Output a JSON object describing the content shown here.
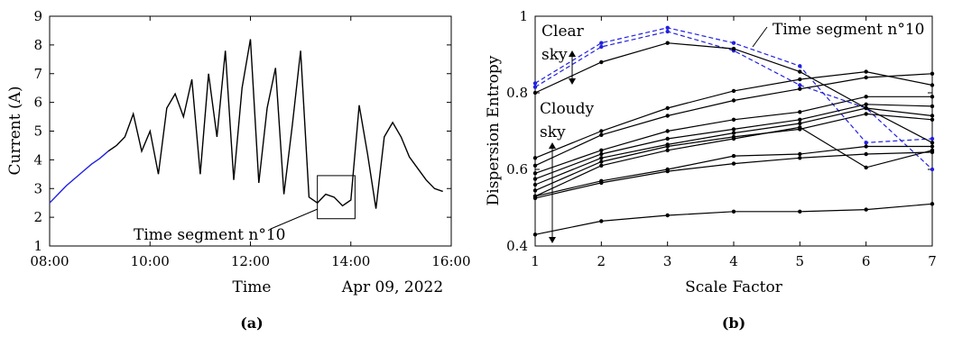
{
  "chart_data": [
    {
      "panel": "(a)",
      "type": "line",
      "xlabel": "Time",
      "xlabel_extra": "Apr 09, 2022",
      "ylabel": "Current (A)",
      "xlim": [
        "08:00",
        "16:00"
      ],
      "xticks": [
        "08:00",
        "10:00",
        "12:00",
        "14:00",
        "16:00"
      ],
      "ylim": [
        1,
        9
      ],
      "yticks": [
        "1",
        "2",
        "3",
        "4",
        "5",
        "6",
        "7",
        "8",
        "9"
      ],
      "grid": false,
      "colors": {
        "main": "#000000",
        "highlight": "#2020e0"
      },
      "annotation": "Time segment n°10",
      "segment_box": {
        "x_start": "13:20",
        "x_end": "14:05",
        "y_min": 1.95,
        "y_max": 3.45
      },
      "series": [
        {
          "color": "#2020e0",
          "x": [
            "08:00",
            "08:10",
            "08:20",
            "08:30",
            "08:40",
            "08:50",
            "09:00",
            "09:10"
          ],
          "values": [
            2.5,
            2.8,
            3.1,
            3.35,
            3.6,
            3.85,
            4.05,
            4.3
          ]
        },
        {
          "color": "#000000",
          "x": [
            "09:10",
            "09:20",
            "09:30",
            "09:40",
            "09:50",
            "10:00",
            "10:10",
            "10:20",
            "10:30",
            "10:40",
            "10:50",
            "11:00",
            "11:10",
            "11:20",
            "11:30",
            "11:40",
            "11:50",
            "12:00",
            "12:10",
            "12:20",
            "12:30",
            "12:40",
            "12:50",
            "13:00",
            "13:10",
            "13:20",
            "13:30",
            "13:40",
            "13:50",
            "14:00",
            "14:10",
            "14:20",
            "14:30",
            "14:40",
            "14:50",
            "15:00",
            "15:10",
            "15:20",
            "15:30",
            "15:40",
            "15:50"
          ],
          "values": [
            4.3,
            4.5,
            4.8,
            5.6,
            4.3,
            5.0,
            3.5,
            5.8,
            6.3,
            5.5,
            6.8,
            3.5,
            7.0,
            4.8,
            7.8,
            3.3,
            6.5,
            8.2,
            3.2,
            5.8,
            7.2,
            2.8,
            5.2,
            7.8,
            2.7,
            2.5,
            2.8,
            2.7,
            2.4,
            2.6,
            5.9,
            4.2,
            2.3,
            4.8,
            5.3,
            4.8,
            4.1,
            3.7,
            3.3,
            3.0,
            2.9
          ]
        }
      ]
    },
    {
      "panel": "(b)",
      "type": "line",
      "xlabel": "Scale Factor",
      "ylabel": "Dispersion Entropy",
      "x": [
        1,
        2,
        3,
        4,
        5,
        6,
        7
      ],
      "xticks": [
        "1",
        "2",
        "3",
        "4",
        "5",
        "6",
        "7"
      ],
      "xlim": [
        1,
        7
      ],
      "ylim": [
        0.4,
        1.0
      ],
      "yticks": [
        "0.4",
        "0.6",
        "0.8",
        "1"
      ],
      "grid": false,
      "annotations": {
        "clear_sky_line1": "Clear",
        "clear_sky_line2": "sky",
        "cloudy_sky_line1": "Cloudy",
        "cloudy_sky_line2": "sky",
        "segment": "Time segment n°10"
      },
      "series": [
        {
          "color": "#2020e0",
          "dashed": true,
          "values": [
            0.825,
            0.93,
            0.97,
            0.93,
            0.87,
            0.67,
            0.68
          ]
        },
        {
          "color": "#2020e0",
          "dashed": true,
          "values": [
            0.815,
            0.92,
            0.96,
            0.91,
            0.82,
            0.76,
            0.6
          ]
        },
        {
          "color": "#000000",
          "dashed": false,
          "values": [
            0.8,
            0.88,
            0.93,
            0.915,
            0.855,
            0.76,
            0.67
          ]
        },
        {
          "color": "#000000",
          "dashed": false,
          "values": [
            0.63,
            0.7,
            0.76,
            0.805,
            0.835,
            0.855,
            0.82
          ]
        },
        {
          "color": "#000000",
          "dashed": false,
          "values": [
            0.61,
            0.69,
            0.74,
            0.78,
            0.81,
            0.84,
            0.85
          ]
        },
        {
          "color": "#000000",
          "dashed": false,
          "values": [
            0.59,
            0.65,
            0.7,
            0.73,
            0.75,
            0.79,
            0.79
          ]
        },
        {
          "color": "#000000",
          "dashed": false,
          "values": [
            0.575,
            0.64,
            0.68,
            0.705,
            0.73,
            0.77,
            0.765
          ]
        },
        {
          "color": "#000000",
          "dashed": false,
          "values": [
            0.56,
            0.63,
            0.665,
            0.695,
            0.72,
            0.76,
            0.74
          ]
        },
        {
          "color": "#000000",
          "dashed": false,
          "values": [
            0.545,
            0.62,
            0.66,
            0.685,
            0.705,
            0.745,
            0.73
          ]
        },
        {
          "color": "#000000",
          "dashed": false,
          "values": [
            0.53,
            0.61,
            0.65,
            0.68,
            0.71,
            0.605,
            0.65
          ]
        },
        {
          "color": "#000000",
          "dashed": false,
          "values": [
            0.53,
            0.57,
            0.6,
            0.635,
            0.64,
            0.66,
            0.66
          ]
        },
        {
          "color": "#000000",
          "dashed": false,
          "values": [
            0.525,
            0.565,
            0.595,
            0.615,
            0.63,
            0.64,
            0.645
          ]
        },
        {
          "color": "#000000",
          "dashed": false,
          "values": [
            0.43,
            0.465,
            0.48,
            0.49,
            0.49,
            0.495,
            0.51
          ]
        }
      ]
    }
  ],
  "captions": {
    "a": "(a)",
    "b": "(b)"
  }
}
